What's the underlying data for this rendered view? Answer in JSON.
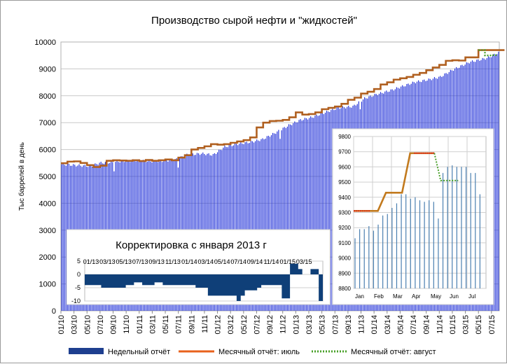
{
  "colors": {
    "weekly": "#1f2fd8",
    "weekly_legend": "#1e3f8f",
    "monthly_july": "#b06020",
    "monthly_july_legend": "#e8621c",
    "monthly_august": "#4aa02a",
    "inset_bar": "#4a7fb0",
    "inset_line": "#c27a1e",
    "inset_red": "#e0301e",
    "correction_fill": "#0f3f78",
    "grid": "#c8c8c8"
  },
  "chart_data": [
    {
      "type": "bar",
      "title": "Производство сырой нефти и \"жидкостей\"",
      "xlabel": "",
      "ylabel": "Тыс баррелей в день",
      "ylim": [
        0,
        10000
      ],
      "yticks": [
        "0",
        "1000",
        "2000",
        "3000",
        "4000",
        "5000",
        "6000",
        "7000",
        "8000",
        "9000",
        "10000"
      ],
      "xticks": [
        "01/10",
        "03/10",
        "05/10",
        "07/10",
        "09/10",
        "11/10",
        "01/11",
        "03/11",
        "05/11",
        "07/11",
        "09/11",
        "11/11",
        "01/12",
        "03/12",
        "05/12",
        "07/12",
        "09/12",
        "11/12",
        "01/13",
        "03/13",
        "05/13",
        "07/13",
        "09/13",
        "11/13",
        "01/14",
        "03/14",
        "05/14",
        "07/14",
        "09/14",
        "11/14",
        "01/15",
        "03/15",
        "05/15",
        "07/15"
      ],
      "legend_position": "bottom",
      "grid": true,
      "monthly_july_x_months": [
        0,
        1,
        2,
        3,
        4,
        5,
        6,
        7,
        8,
        9,
        10,
        11,
        12,
        13,
        14,
        15,
        16,
        17,
        18,
        19,
        20,
        21,
        22,
        23,
        24,
        25,
        26,
        27,
        28,
        29,
        30,
        31,
        32,
        33,
        34,
        35,
        36,
        37,
        38,
        39,
        40,
        41,
        42,
        43,
        44,
        45,
        46,
        47,
        48,
        49,
        50,
        51,
        52,
        53,
        54,
        55,
        56,
        57,
        58,
        59,
        60,
        61,
        62,
        63,
        64,
        65,
        66,
        67
      ],
      "series": [
        {
          "name": "Недельный отчёт",
          "kind": "bars",
          "anchor_weeks": [
            0,
            8,
            20,
            26,
            34,
            40,
            52,
            60,
            70,
            78,
            86,
            96,
            104,
            112,
            120,
            130,
            138,
            146,
            156,
            164,
            172,
            182,
            190,
            200,
            208,
            216,
            226,
            234,
            242,
            252,
            260,
            268,
            280,
            292,
            300
          ],
          "anchor_values": [
            5450,
            5420,
            5380,
            5500,
            5520,
            5560,
            5600,
            5560,
            5580,
            5620,
            5800,
            5850,
            5800,
            6100,
            6200,
            6280,
            6380,
            6600,
            6900,
            7100,
            7200,
            7400,
            7550,
            7600,
            7900,
            8050,
            8200,
            8350,
            8500,
            8600,
            8700,
            8950,
            9250,
            9400,
            9600
          ]
        },
        {
          "name": "Месячный отчёт: июль",
          "kind": "line",
          "values": [
            5490,
            5550,
            5560,
            5500,
            5420,
            5350,
            5400,
            5580,
            5600,
            5590,
            5580,
            5600,
            5570,
            5610,
            5580,
            5600,
            5630,
            5600,
            5700,
            5790,
            6000,
            6060,
            6120,
            6200,
            6180,
            6200,
            6250,
            6300,
            6350,
            6450,
            6820,
            7000,
            7060,
            7070,
            7100,
            7200,
            7380,
            7300,
            7320,
            7380,
            7500,
            7550,
            7600,
            7700,
            7850,
            7930,
            8080,
            8150,
            8250,
            8420,
            8500,
            8600,
            8650,
            8700,
            8780,
            8850,
            8950,
            9050,
            9150,
            9300,
            9320,
            9310,
            9430,
            9430,
            9700,
            9700,
            9700,
            9700
          ]
        },
        {
          "name": "Месячный отчёт: август",
          "kind": "dotted",
          "values_last_months": [
            9700,
            9500,
            9510
          ]
        }
      ]
    },
    {
      "type": "bar",
      "title": "",
      "ylim": [
        8800,
        9800
      ],
      "yticks": [
        "8800",
        "8900",
        "9000",
        "9100",
        "9200",
        "9300",
        "9400",
        "9500",
        "9600",
        "9700",
        "9800"
      ],
      "xticks": [
        "Jan",
        "Feb",
        "Mar",
        "Apr",
        "May",
        "Jun",
        "Jul"
      ],
      "grid": true,
      "weekly_values": [
        9130,
        9190,
        9190,
        9210,
        9180,
        9220,
        9280,
        9290,
        9330,
        9360,
        9420,
        9420,
        9390,
        9400,
        9380,
        9370,
        9380,
        9370,
        9260,
        9560,
        9600,
        9610,
        9600,
        9600,
        9600,
        9560,
        9560,
        9420
      ],
      "july_line": [
        9310,
        9310,
        9310,
        9310,
        9430,
        9430,
        9430,
        9690,
        9690,
        9690,
        9690
      ],
      "july_red_weeks": [
        0,
        1,
        2,
        3,
        4,
        5,
        6,
        7,
        8,
        9,
        10,
        11,
        12,
        13,
        14
      ],
      "august_line": [
        9690,
        9510,
        9510
      ]
    },
    {
      "type": "area",
      "title": "Корректировка с января 2013 г",
      "ylim": [
        -10,
        5
      ],
      "yticks": [
        "5",
        "0",
        "-5",
        "-10"
      ],
      "xticks": [
        "01/13",
        "03/13",
        "05/13",
        "07/13",
        "09/13",
        "11/13",
        "01/14",
        "03/14",
        "05/14",
        "07/14",
        "09/14",
        "11/14",
        "01/15",
        "03/15"
      ],
      "values": [
        -4,
        -4,
        -4,
        -4,
        -5,
        -5,
        -5,
        -5,
        -5,
        -5,
        -4,
        -4,
        -3,
        -3,
        -4,
        -4,
        -4,
        -3,
        -3,
        -4,
        -4,
        -4,
        -4,
        -4,
        -4,
        -4,
        -4,
        -5,
        -5,
        -5,
        -8,
        -8,
        -8,
        -8,
        -8,
        -8,
        -8,
        -10,
        -8,
        -6,
        -6,
        -6,
        -5,
        -4,
        -4,
        -4,
        -4,
        -4,
        -9,
        -9,
        4,
        4,
        2,
        0,
        0,
        2,
        2,
        -10
      ]
    }
  ]
}
